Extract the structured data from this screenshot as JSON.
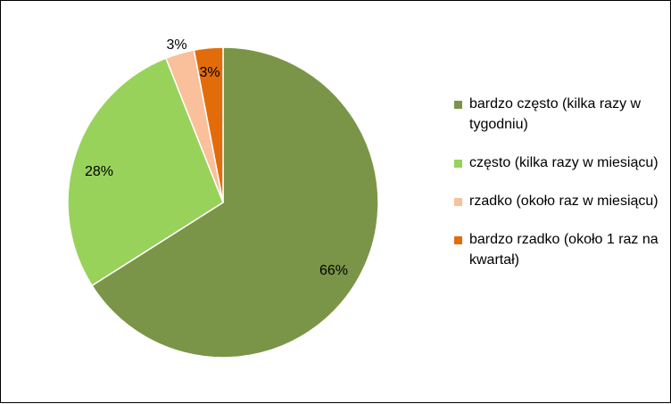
{
  "chart_data": {
    "type": "pie",
    "title": "",
    "start_angle_deg": 0,
    "direction": "clockwise",
    "legend_position": "right",
    "slices": [
      {
        "label": "bardzo często (kilka razy w tygodniu)",
        "value": 66,
        "display": "66%",
        "color": "#7a9547"
      },
      {
        "label": "często (kilka razy w miesiącu)",
        "value": 28,
        "display": "28%",
        "color": "#98d25b"
      },
      {
        "label": "rzadko (około raz w miesiącu)",
        "value": 3,
        "display": "3%",
        "color": "#f9c09b"
      },
      {
        "label": "bardzo rzadko (około 1 raz na kwartał)",
        "value": 3,
        "display": "3%",
        "color": "#e36c0a"
      }
    ]
  }
}
